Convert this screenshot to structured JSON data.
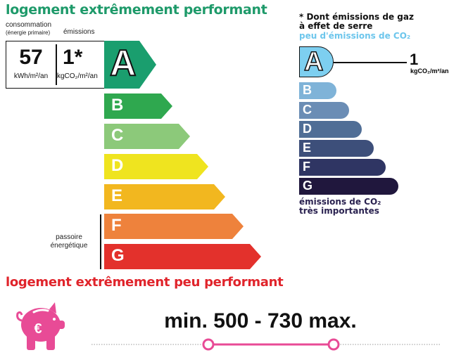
{
  "header": {
    "top_title": "logement extrêmement performant",
    "bottom_title": "logement extrêmement peu performant"
  },
  "energy": {
    "consumption_label": "consommation",
    "consumption_sub": "(énergie primaire)",
    "emissions_label": "émissions",
    "consumption_value": "57",
    "consumption_unit": "kWh/m²/an",
    "emissions_value": "1*",
    "emissions_unit": "kgCO₂/m²/an",
    "rating": "A",
    "classes": [
      {
        "letter": "A",
        "color": "#1a9e6e"
      },
      {
        "letter": "B",
        "color": "#2fa84f"
      },
      {
        "letter": "C",
        "color": "#8cc97a"
      },
      {
        "letter": "D",
        "color": "#efe41f"
      },
      {
        "letter": "E",
        "color": "#f2b71f"
      },
      {
        "letter": "F",
        "color": "#ee823c"
      },
      {
        "letter": "G",
        "color": "#e3312c"
      }
    ],
    "passoire_label": "passoire énergétique"
  },
  "ghg": {
    "note_line1": "* Dont émissions de gaz",
    "note_line2": "à effet de serre",
    "top_label": "peu d'émissions de CO₂",
    "bottom_label_line1": "émissions de CO₂",
    "bottom_label_line2": "très importantes",
    "rating": "A",
    "value": "1",
    "unit": "kgCO₂/m²/an",
    "classes": [
      {
        "letter": "A",
        "color": "#7dcff0"
      },
      {
        "letter": "B",
        "color": "#7fb3d8"
      },
      {
        "letter": "C",
        "color": "#6b8db5"
      },
      {
        "letter": "D",
        "color": "#506e96"
      },
      {
        "letter": "E",
        "color": "#3d4f7a"
      },
      {
        "letter": "F",
        "color": "#2f3563"
      },
      {
        "letter": "G",
        "color": "#20173d"
      }
    ]
  },
  "cost": {
    "icon": "piggy-bank-euro-icon",
    "range_text": "min. 500  -  730 max.",
    "accent": "#e84b96"
  }
}
